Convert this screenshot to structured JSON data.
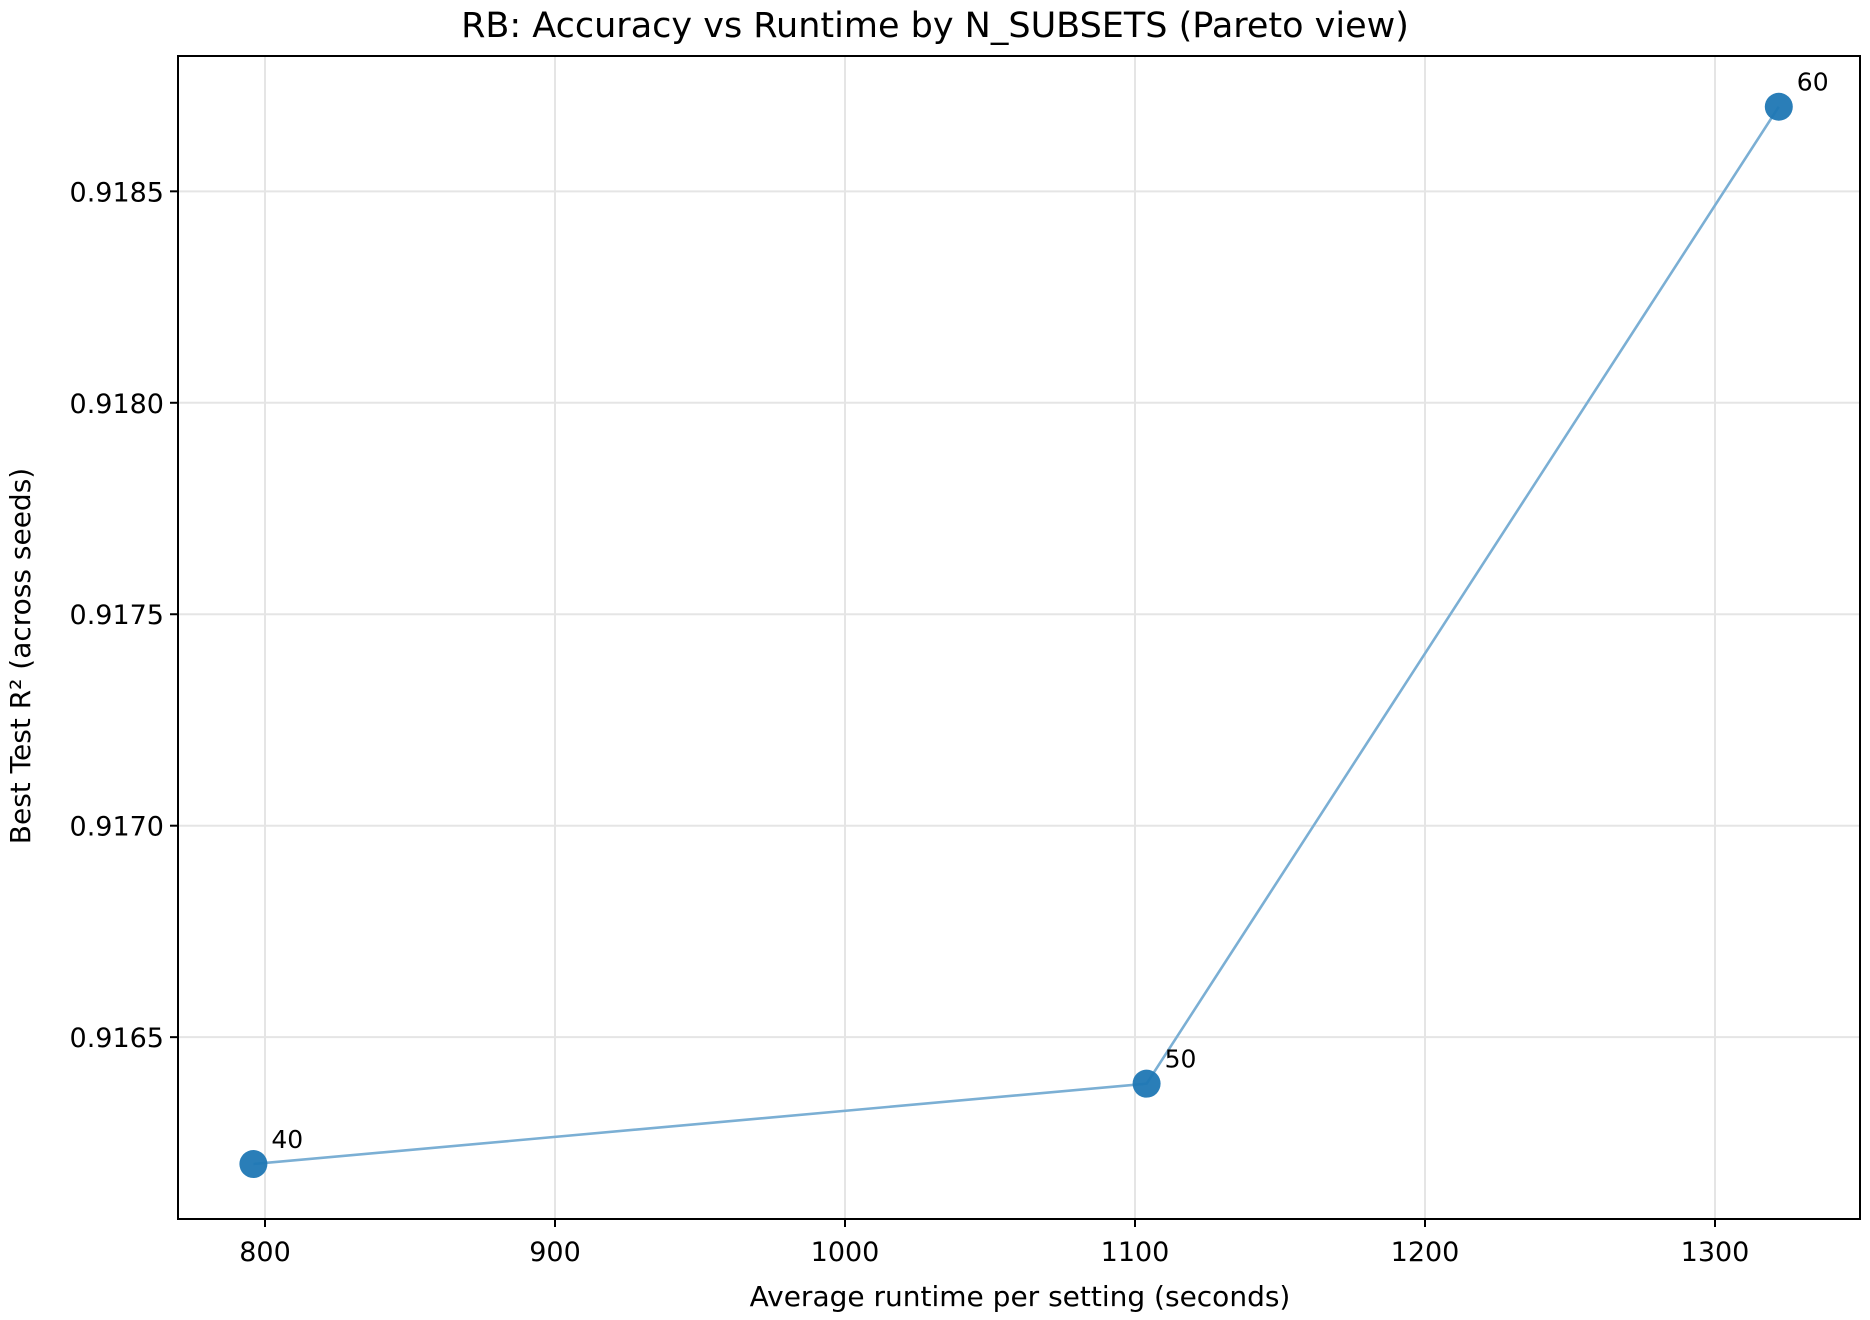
{
  "chart_data": {
    "type": "scatter",
    "title": "RB: Accuracy vs Runtime by N_SUBSETS (Pareto view)",
    "xlabel": "Average runtime per setting (seconds)",
    "ylabel": "Best Test R² (across seeds)",
    "xlim": [
      770,
      1350
    ],
    "ylim": [
      0.91607,
      0.91882
    ],
    "xticks": [
      800,
      900,
      1000,
      1100,
      1200,
      1300
    ],
    "xtick_labels": [
      "800",
      "900",
      "1000",
      "1100",
      "1200",
      "1300"
    ],
    "yticks": [
      0.9165,
      0.917,
      0.9175,
      0.918,
      0.9185
    ],
    "ytick_labels": [
      "0.9165",
      "0.9170",
      "0.9175",
      "0.9180",
      "0.9185"
    ],
    "grid": true,
    "connect_points": true,
    "series": [
      {
        "x": [
          796,
          1104,
          1322
        ],
        "y": [
          0.9162,
          0.91639,
          0.9187
        ],
        "labels": [
          "40",
          "50",
          "60"
        ],
        "line_color": "#7bafd4",
        "marker_color": "#1f77b4"
      }
    ]
  }
}
